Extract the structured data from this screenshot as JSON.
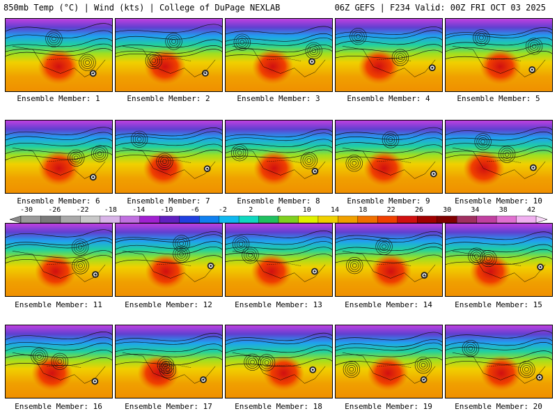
{
  "header": {
    "left": "850mb Temp (°C) | Wind (kts) | College of DuPage NEXLAB",
    "right": "06Z GEFS | F234 Valid: 00Z FRI OCT 03 2025"
  },
  "colorbar": {
    "ticks": [
      "-30",
      "-26",
      "-22",
      "-18",
      "-14",
      "-10",
      "-6",
      "-2",
      "2",
      "6",
      "10",
      "14",
      "18",
      "22",
      "26",
      "30",
      "34",
      "38",
      "42"
    ],
    "colors": [
      "#9a9a9a",
      "#7a7a7a",
      "#a9a9a9",
      "#c8c8c8",
      "#d8b4e8",
      "#c070e0",
      "#a020d0",
      "#6020c0",
      "#2040e0",
      "#1080f0",
      "#10b8f0",
      "#10d8c0",
      "#20c060",
      "#80d020",
      "#e0f000",
      "#f0d000",
      "#f0a000",
      "#f07000",
      "#f04000",
      "#d01010",
      "#a00000",
      "#800000",
      "#a03060",
      "#c040a0",
      "#e070d0",
      "#f0b0f0"
    ]
  },
  "members": [
    {
      "label": "Ensemble Member: 1"
    },
    {
      "label": "Ensemble Member: 2"
    },
    {
      "label": "Ensemble Member: 3"
    },
    {
      "label": "Ensemble Member: 4"
    },
    {
      "label": "Ensemble Member: 5"
    },
    {
      "label": "Ensemble Member: 6"
    },
    {
      "label": "Ensemble Member: 7"
    },
    {
      "label": "Ensemble Member: 8"
    },
    {
      "label": "Ensemble Member: 9"
    },
    {
      "label": "Ensemble Member: 10"
    },
    {
      "label": "Ensemble Member: 11"
    },
    {
      "label": "Ensemble Member: 12"
    },
    {
      "label": "Ensemble Member: 13"
    },
    {
      "label": "Ensemble Member: 14"
    },
    {
      "label": "Ensemble Member: 15"
    },
    {
      "label": "Ensemble Member: 16"
    },
    {
      "label": "Ensemble Member: 17"
    },
    {
      "label": "Ensemble Member: 18"
    },
    {
      "label": "Ensemble Member: 19"
    },
    {
      "label": "Ensemble Member: 20"
    }
  ]
}
